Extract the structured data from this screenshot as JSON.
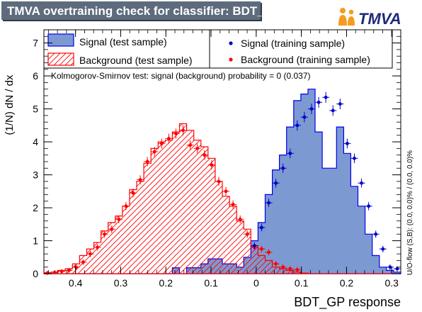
{
  "title": "TMVA overtraining check for classifier: BDT_GP",
  "logo_text": "TMVA",
  "colors": {
    "signal_fill": "#7d99d1",
    "signal_line": "#0000ee",
    "signal_marker": "#0000cc",
    "background_line": "#ff0000",
    "background_marker": "#ff0000",
    "title_bg": "#5d6b7d",
    "logo_orange": "#f39c1f"
  },
  "ks_text": "Kolmogorov-Smirnov test: signal (background) probability =     0 (0.037)",
  "overflow_text": "U/O-flow (S,B): (0.0, 0.0)% / (0.0, 0.0)%",
  "chart_data": {
    "type": "histogram",
    "title": "TMVA overtraining check for classifier: BDT_GP",
    "xlabel": "BDT_GP response",
    "ylabel": "(1/N) dN / dx",
    "xlim": [
      -0.47,
      0.32
    ],
    "ylim": [
      0,
      7.4
    ],
    "xticks": [
      -0.4,
      -0.3,
      -0.2,
      -0.1,
      0,
      0.1,
      0.2,
      0.3
    ],
    "xtick_labels": [
      "0.4",
      "0.3",
      "0.2",
      "0.1",
      "0",
      "0.1",
      "0.2",
      "0.3"
    ],
    "yticks": [
      0,
      1,
      2,
      3,
      4,
      5,
      6,
      7
    ],
    "ytick_labels": [
      "0",
      "1",
      "2",
      "3",
      "4",
      "5",
      "6",
      "7"
    ],
    "legend_position": "top",
    "bin_width": 0.0158,
    "bin_centers": [
      -0.4621,
      -0.4463,
      -0.4305,
      -0.4147,
      -0.3989,
      -0.3831,
      -0.3673,
      -0.3515,
      -0.3357,
      -0.3199,
      -0.3041,
      -0.2883,
      -0.2725,
      -0.2567,
      -0.2409,
      -0.2251,
      -0.2093,
      -0.1935,
      -0.1777,
      -0.1619,
      -0.1461,
      -0.1303,
      -0.1145,
      -0.0987,
      -0.0829,
      -0.0671,
      -0.0513,
      -0.0355,
      -0.0197,
      -0.0039,
      0.0119,
      0.0277,
      0.0435,
      0.0593,
      0.0751,
      0.0909,
      0.1067,
      0.1225,
      0.1383,
      0.1541,
      0.1699,
      0.1857,
      0.2015,
      0.2173,
      0.2331,
      0.2489,
      0.2647,
      0.2805,
      0.2963,
      0.3121
    ],
    "series": [
      {
        "name": "Signal (test sample)",
        "style": "filled-histogram",
        "values": [
          0,
          0,
          0,
          0,
          0,
          0,
          0,
          0,
          0,
          0,
          0,
          0,
          0,
          0,
          0,
          0,
          0,
          0,
          0.18,
          0,
          0.18,
          0.18,
          0.3,
          0.45,
          0.45,
          0.3,
          0.3,
          0.2,
          0.5,
          1.0,
          1.55,
          2.4,
          3.15,
          3.6,
          4.45,
          5.25,
          5.45,
          5.6,
          4.3,
          3.2,
          3.2,
          4.45,
          3.65,
          2.65,
          2.05,
          1.2,
          0.55,
          0.2,
          0.1,
          0.05
        ]
      },
      {
        "name": "Background (test sample)",
        "style": "hatched-histogram",
        "values": [
          0.03,
          0.05,
          0.1,
          0.15,
          0.3,
          0.55,
          0.75,
          0.95,
          1.3,
          1.55,
          1.75,
          2.05,
          2.55,
          2.8,
          3.35,
          3.8,
          4.0,
          4.05,
          4.3,
          4.55,
          4.35,
          4.05,
          3.85,
          3.5,
          2.8,
          2.35,
          2.05,
          1.6,
          1.35,
          0.85,
          0.55,
          0.4,
          0.2,
          0.15,
          0.1,
          0.05,
          0.02,
          0,
          0,
          0,
          0,
          0,
          0,
          0,
          0,
          0,
          0,
          0,
          0,
          0
        ]
      },
      {
        "name": "Signal (training sample)",
        "style": "markers",
        "x": [
          -0.0039,
          0.0119,
          0.0277,
          0.0435,
          0.0593,
          0.0751,
          0.0909,
          0.1067,
          0.1225,
          0.1383,
          0.1541,
          0.1699,
          0.1857,
          0.2015,
          0.2173,
          0.2331,
          0.2489,
          0.2647,
          0.2805,
          0.2963,
          0.3121
        ],
        "values": [
          0.85,
          1.4,
          2.15,
          2.75,
          3.2,
          3.65,
          4.5,
          4.75,
          5.0,
          5.2,
          5.35,
          4.95,
          5.15,
          3.95,
          3.5,
          2.75,
          2.05,
          1.2,
          0.75,
          0.2,
          0.15
        ]
      },
      {
        "name": "Background (training sample)",
        "style": "markers",
        "x": [
          -0.4621,
          -0.4463,
          -0.4305,
          -0.4147,
          -0.3989,
          -0.3831,
          -0.3673,
          -0.3515,
          -0.3357,
          -0.3199,
          -0.3041,
          -0.2883,
          -0.2725,
          -0.2567,
          -0.2409,
          -0.2251,
          -0.2093,
          -0.1935,
          -0.1777,
          -0.1619,
          -0.1461,
          -0.1303,
          -0.1145,
          -0.0987,
          -0.0829,
          -0.0671,
          -0.0513,
          -0.0355,
          -0.0197,
          -0.0039,
          0.0119,
          0.0277,
          0.0435,
          0.0593,
          0.0751,
          0.0909
        ],
        "values": [
          0.02,
          0.04,
          0.07,
          0.1,
          0.2,
          0.35,
          0.6,
          0.8,
          1.2,
          1.35,
          1.65,
          2.05,
          2.45,
          2.85,
          3.4,
          3.7,
          3.95,
          4.1,
          4.25,
          4.35,
          3.9,
          3.8,
          3.6,
          3.3,
          2.8,
          2.5,
          2.1,
          1.65,
          1.2,
          0.8,
          0.75,
          0.65,
          0.3,
          0.2,
          0.15,
          0.12
        ]
      }
    ]
  }
}
